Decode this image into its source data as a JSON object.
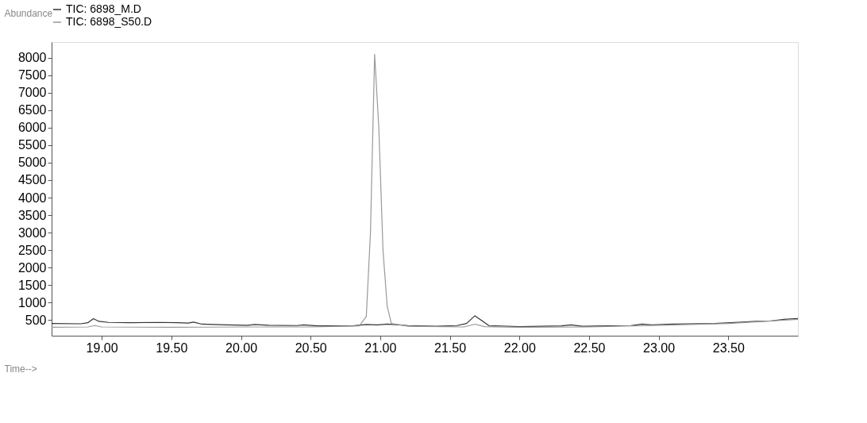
{
  "chart_data": {
    "type": "line",
    "xlabel": "Time-->",
    "ylabel": "Abundance",
    "xlim": [
      18.64,
      24.0
    ],
    "ylim": [
      50,
      8450
    ],
    "xticks": [
      {
        "value": 19,
        "label": "19.00"
      },
      {
        "value": 19.5,
        "label": "19.50"
      },
      {
        "value": 20,
        "label": "20.00"
      },
      {
        "value": 20.5,
        "label": "20.50"
      },
      {
        "value": 21,
        "label": "21.00"
      },
      {
        "value": 21.5,
        "label": "21.50"
      },
      {
        "value": 22,
        "label": "22.00"
      },
      {
        "value": 22.5,
        "label": "22.50"
      },
      {
        "value": 23,
        "label": "23.00"
      },
      {
        "value": 23.5,
        "label": "23.50"
      }
    ],
    "yticks": [
      500,
      1000,
      1500,
      2000,
      2500,
      3000,
      3500,
      4000,
      4500,
      5000,
      5500,
      6000,
      6500,
      7000,
      7500,
      8000
    ],
    "grid": false,
    "legend": "top",
    "marker": "none",
    "line_style": "solid",
    "series": [
      {
        "name": "TIC: 6898_M.D",
        "color": "#333333",
        "x": [
          18.64,
          18.85,
          18.9,
          18.94,
          18.98,
          19.05,
          19.2,
          19.4,
          19.55,
          19.62,
          19.66,
          19.72,
          19.9,
          20.05,
          20.1,
          20.2,
          20.4,
          20.45,
          20.55,
          20.8,
          20.9,
          20.98,
          21.05,
          21.2,
          21.4,
          21.55,
          21.62,
          21.68,
          21.73,
          21.78,
          22.0,
          22.3,
          22.37,
          22.45,
          22.8,
          22.88,
          22.95,
          23.1,
          23.4,
          23.6,
          23.7,
          23.8,
          23.9,
          24.0
        ],
        "values": [
          400,
          390,
          420,
          540,
          460,
          430,
          420,
          430,
          420,
          410,
          440,
          380,
          360,
          350,
          370,
          350,
          340,
          360,
          330,
          330,
          370,
          360,
          380,
          340,
          320,
          340,
          400,
          620,
          480,
          340,
          310,
          330,
          360,
          320,
          340,
          380,
          360,
          380,
          400,
          440,
          460,
          470,
          520,
          540
        ]
      },
      {
        "name": "TIC: 6898_S50.D",
        "color": "#999999",
        "x": [
          18.64,
          18.9,
          18.95,
          19.0,
          19.5,
          20.0,
          20.5,
          20.85,
          20.9,
          20.93,
          20.96,
          20.99,
          21.02,
          21.05,
          21.08,
          21.2,
          21.6,
          21.68,
          21.75,
          22.0,
          22.5,
          23.0,
          23.5,
          24.0
        ],
        "values": [
          290,
          300,
          340,
          300,
          290,
          300,
          300,
          330,
          600,
          3000,
          8100,
          6000,
          2500,
          900,
          400,
          320,
          300,
          380,
          310,
          290,
          300,
          350,
          400,
          520
        ]
      }
    ]
  }
}
